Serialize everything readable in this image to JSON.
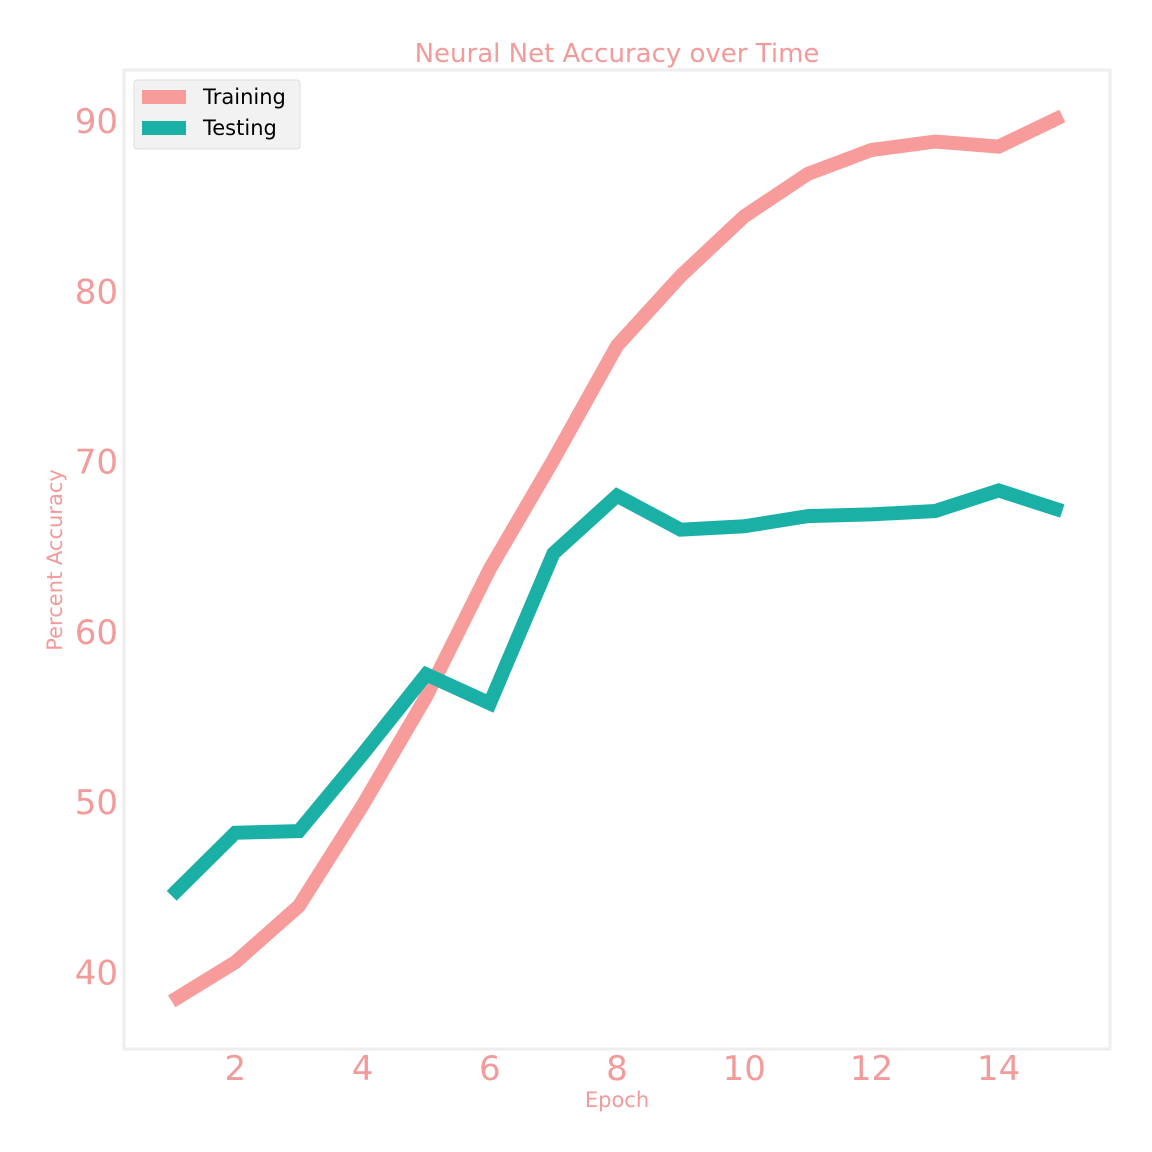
{
  "colors": {
    "text": "#f39a9a",
    "frame": "#eeeeee",
    "legend_bg": "#f2f2f2",
    "legend_border": "#dddddd"
  },
  "chart_data": {
    "type": "line",
    "title": "Neural Net Accuracy over Time",
    "xlabel": "Epoch",
    "ylabel": "Percent Accuracy",
    "xlim": [
      0.25,
      15.75
    ],
    "ylim": [
      35.5,
      93
    ],
    "xticks": [
      2,
      4,
      6,
      8,
      10,
      12,
      14
    ],
    "yticks": [
      40,
      50,
      60,
      70,
      80,
      90
    ],
    "grid": false,
    "legend_position": "top-left",
    "x": [
      1,
      2,
      3,
      4,
      5,
      6,
      7,
      8,
      9,
      10,
      11,
      12,
      13,
      14,
      15
    ],
    "series": [
      {
        "name": "Training",
        "color": "#f79b9b",
        "values": [
          38.3,
          40.6,
          43.9,
          49.8,
          56.2,
          63.7,
          70.1,
          76.8,
          80.9,
          84.4,
          86.9,
          88.3,
          88.8,
          88.5,
          90.3
        ]
      },
      {
        "name": "Testing",
        "color": "#1bb0a6",
        "values": [
          44.5,
          48.2,
          48.3,
          52.8,
          57.5,
          55.8,
          64.6,
          68.0,
          66.0,
          66.2,
          66.8,
          66.9,
          67.1,
          68.3,
          67.1
        ]
      }
    ]
  }
}
